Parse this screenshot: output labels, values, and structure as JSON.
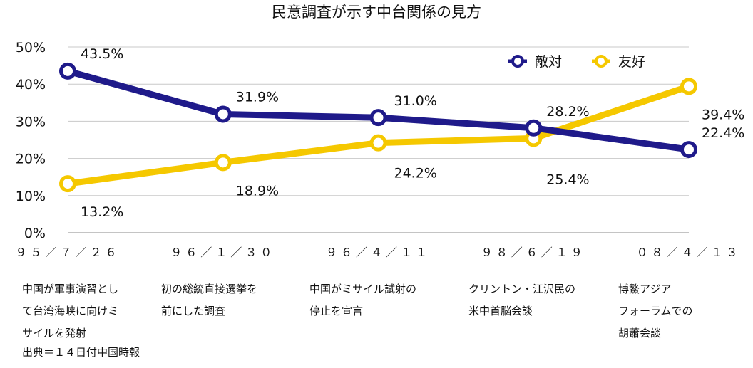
{
  "chart_data": {
    "type": "line",
    "title": "民意調査が示す中台関係の見方",
    "categories": [
      "９５／７／２６",
      "９６／１／３０",
      "９６／４／１１",
      "９８／６／１９",
      "０８／４／１３"
    ],
    "ylim": [
      0,
      50
    ],
    "yticks": [
      "0%",
      "10%",
      "20%",
      "30%",
      "40%",
      "50%"
    ],
    "ytick_values": [
      0,
      10,
      20,
      30,
      40,
      50
    ],
    "grid": true,
    "legend": "top-right",
    "series": [
      {
        "name": "敵対",
        "color": "#1f1a8a",
        "values": [
          43.5,
          31.9,
          31.0,
          28.2,
          22.4
        ],
        "labels": [
          "43.5%",
          "31.9%",
          "31.0%",
          "28.2%",
          "22.4%"
        ]
      },
      {
        "name": "友好",
        "color": "#f5c800",
        "values": [
          13.2,
          18.9,
          24.2,
          25.4,
          39.4
        ],
        "labels": [
          "13.2%",
          "18.9%",
          "24.2%",
          "25.4%",
          "39.4%"
        ]
      }
    ]
  },
  "notes": [
    [
      "中国が軍事演習とし",
      "て台湾海峡に向けミ",
      "サイルを発射"
    ],
    [
      "初の総統直接選挙を",
      "前にした調査"
    ],
    [
      "中国がミサイル試射の",
      "停止を宣言"
    ],
    [
      "クリントン・江沢民の",
      "米中首脳会談"
    ],
    [
      "博鰲アジア",
      "フォーラムでの",
      "胡蕭会談"
    ]
  ],
  "source": "出典＝１４日付中国時報"
}
